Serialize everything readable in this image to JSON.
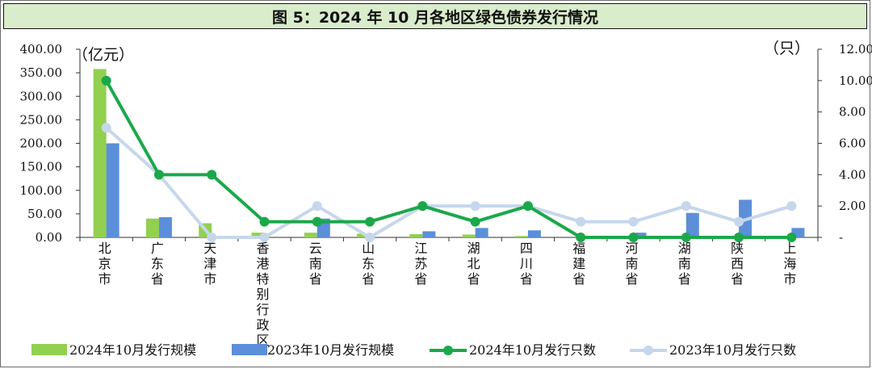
{
  "title": "图 5：2024 年 10 月各地区绿色债券发行情况",
  "colors": {
    "bar2024": "#92d050",
    "bar2023": "#5b8fd9",
    "line2024": "#1aa84a",
    "line2023": "#c6d7ec"
  },
  "chart_data": {
    "type": "bar",
    "title": "图 5：2024 年 10 月各地区绿色债券发行情况",
    "ylabel_left": "（亿元）",
    "ylabel_right": "（只）",
    "ylim_left": [
      0,
      400
    ],
    "ylim_right": [
      0,
      12
    ],
    "yticks_left": [
      "0.00",
      "50.00",
      "100.00",
      "150.00",
      "200.00",
      "250.00",
      "300.00",
      "350.00",
      "400.00"
    ],
    "yticks_right": [
      "-",
      "2.00",
      "4.00",
      "6.00",
      "8.00",
      "10.00",
      "12.00"
    ],
    "categories": [
      "北京市",
      "广东省",
      "天津市",
      "香港特别行政区",
      "云南省",
      "山东省",
      "江苏省",
      "湖北省",
      "四川省",
      "福建省",
      "河南省",
      "湖南省",
      "陕西省",
      "上海市"
    ],
    "series": [
      {
        "name": "2024年10月发行规模",
        "kind": "bar",
        "axis": "left",
        "values": [
          358,
          40,
          30,
          10,
          10,
          8,
          7,
          6,
          3,
          0,
          0,
          0,
          0,
          0
        ]
      },
      {
        "name": "2023年10月发行规模",
        "kind": "bar",
        "axis": "left",
        "values": [
          200,
          43,
          0,
          0,
          40,
          0,
          13,
          20,
          15,
          3,
          10,
          52,
          80,
          20
        ]
      },
      {
        "name": "2024年10月发行只数",
        "kind": "line",
        "axis": "right",
        "values": [
          10,
          4,
          4,
          1,
          1,
          1,
          2,
          1,
          2,
          0,
          0,
          0,
          0,
          0
        ]
      },
      {
        "name": "2023年10月发行只数",
        "kind": "line",
        "axis": "right",
        "values": [
          7,
          4,
          0,
          0,
          2,
          0,
          2,
          2,
          2,
          1,
          1,
          2,
          1,
          2
        ]
      }
    ],
    "legend_position": "bottom",
    "grid": false
  }
}
